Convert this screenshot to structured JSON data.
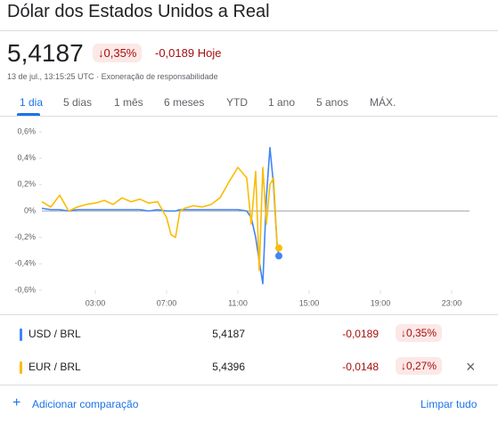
{
  "header": {
    "title": "Dólar dos Estados Unidos a Real",
    "price": "5,4187",
    "change_pct": "0,35%",
    "change": "-0,0189",
    "period": "Hoje",
    "timestamp": "13 de jul., 13:15:25 UTC",
    "disclaimer": "Exoneração de responsabilidade"
  },
  "tabs": [
    "1 dia",
    "5 dias",
    "1 mês",
    "6 meses",
    "YTD",
    "1 ano",
    "5 anos",
    "MÁX."
  ],
  "chart_data": {
    "type": "line",
    "x": [
      0,
      0.5,
      1,
      1.5,
      2,
      2.5,
      3,
      3.5,
      4,
      4.5,
      5,
      5.5,
      6,
      6.5,
      7,
      7.25,
      7.5,
      7.75,
      8,
      8.5,
      9,
      9.5,
      10,
      10.5,
      11,
      11.5,
      11.75,
      12,
      12.2,
      12.4,
      12.6,
      12.8,
      13,
      13.2,
      13.3
    ],
    "series": [
      {
        "name": "USD / BRL",
        "color": "#4285f4",
        "values": [
          0.02,
          0.01,
          0.01,
          0.0,
          0.01,
          0.01,
          0.01,
          0.01,
          0.01,
          0.01,
          0.01,
          0.01,
          0.0,
          0.01,
          0.0,
          0.0,
          0.0,
          0.01,
          0.01,
          0.01,
          0.01,
          0.01,
          0.01,
          0.01,
          0.01,
          0.0,
          -0.05,
          -0.2,
          -0.38,
          -0.55,
          0.1,
          0.48,
          0.2,
          -0.25,
          -0.34
        ]
      },
      {
        "name": "EUR / BRL",
        "color": "#fbbc04",
        "values": [
          0.07,
          0.03,
          0.12,
          0.0,
          0.03,
          0.05,
          0.06,
          0.08,
          0.05,
          0.1,
          0.07,
          0.09,
          0.06,
          0.07,
          -0.05,
          -0.18,
          -0.2,
          0.0,
          0.02,
          0.04,
          0.03,
          0.05,
          0.1,
          0.22,
          0.33,
          0.25,
          -0.1,
          0.3,
          -0.45,
          0.33,
          -0.1,
          0.2,
          0.25,
          -0.25,
          -0.28
        ]
      }
    ],
    "xlim": [
      0,
      24
    ],
    "xticks": [
      {
        "value": 3,
        "label": "03:00"
      },
      {
        "value": 7,
        "label": "07:00"
      },
      {
        "value": 11,
        "label": "11:00"
      },
      {
        "value": 15,
        "label": "15:00"
      },
      {
        "value": 19,
        "label": "19:00"
      },
      {
        "value": 23,
        "label": "23:00"
      }
    ],
    "ylim": [
      -0.6,
      0.6
    ],
    "yticks": [
      {
        "value": -0.6,
        "label": "-0,6%"
      },
      {
        "value": -0.4,
        "label": "-0,4%"
      },
      {
        "value": -0.2,
        "label": "-0,2%"
      },
      {
        "value": 0,
        "label": "0%"
      },
      {
        "value": 0.2,
        "label": "0,2%"
      },
      {
        "value": 0.4,
        "label": "0,4%"
      },
      {
        "value": 0.6,
        "label": "0,6%"
      }
    ]
  },
  "comparison": {
    "rows": [
      {
        "price": "5,4187",
        "change": "-0,0189",
        "change_pct": "0,35%"
      },
      {
        "price": "5,4396",
        "change": "-0,0148",
        "change_pct": "0,27%"
      }
    ],
    "add": "Adicionar comparação",
    "clear": "Limpar tudo"
  }
}
